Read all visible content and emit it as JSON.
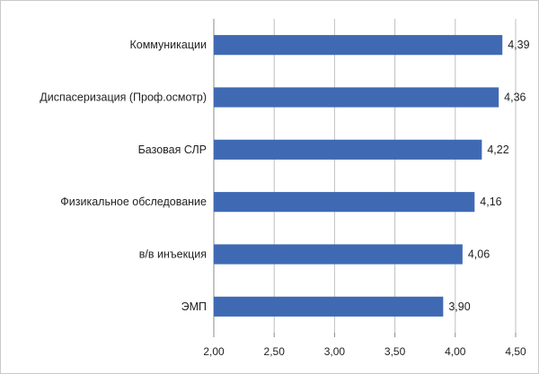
{
  "chart_data": {
    "type": "bar",
    "orientation": "horizontal",
    "title": "",
    "xlabel": "",
    "ylabel": "",
    "categories": [
      "Коммуникации",
      "Диспасеризация (Проф.осмотр)",
      "Базовая СЛР",
      "Физикальное обследование",
      "в/в инъекция",
      "ЭМП"
    ],
    "values": [
      4.39,
      4.36,
      4.22,
      4.16,
      4.06,
      3.9
    ],
    "value_labels": [
      "4,39",
      "4,36",
      "4,22",
      "4,16",
      "4,06",
      "3,90"
    ],
    "xlim": [
      2.0,
      4.5
    ],
    "x_ticks": [
      2.0,
      2.5,
      3.0,
      3.5,
      4.0,
      4.5
    ],
    "x_tick_labels": [
      "2,00",
      "2,50",
      "3,00",
      "3,50",
      "4,00",
      "4,50"
    ],
    "grid": true,
    "legend": "none",
    "bar_color": "#3f6ab3",
    "grid_color": "#bfbfbf"
  }
}
